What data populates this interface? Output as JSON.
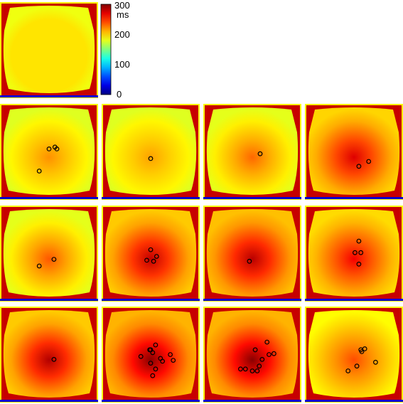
{
  "colorbar": {
    "labels": [
      "300",
      "200",
      "100",
      "0"
    ],
    "unit": "ms",
    "min": 0,
    "max": 300,
    "colormap": "jet"
  },
  "panels": [
    {
      "row": 0,
      "col": 0,
      "level": 195,
      "spot": 0,
      "markers": []
    },
    {
      "row": 1,
      "col": 0,
      "level": 190,
      "spot": 30,
      "markers": [
        [
          0.5,
          0.47
        ],
        [
          0.58,
          0.47
        ],
        [
          0.56,
          0.45
        ],
        [
          0.4,
          0.7
        ]
      ]
    },
    {
      "row": 1,
      "col": 1,
      "level": 190,
      "spot": 25,
      "markers": [
        [
          0.5,
          0.57
        ]
      ]
    },
    {
      "row": 1,
      "col": 2,
      "level": 192,
      "spot": 40,
      "markers": [
        [
          0.58,
          0.52
        ]
      ]
    },
    {
      "row": 1,
      "col": 3,
      "level": 212,
      "spot": 60,
      "markers": [
        [
          0.55,
          0.65
        ],
        [
          0.65,
          0.6
        ]
      ]
    },
    {
      "row": 2,
      "col": 0,
      "level": 192,
      "spot": 45,
      "markers": [
        [
          0.4,
          0.63
        ],
        [
          0.55,
          0.56
        ]
      ]
    },
    {
      "row": 2,
      "col": 1,
      "level": 215,
      "spot": 65,
      "markers": [
        [
          0.5,
          0.46
        ],
        [
          0.56,
          0.53
        ],
        [
          0.46,
          0.57
        ],
        [
          0.53,
          0.58
        ]
      ]
    },
    {
      "row": 2,
      "col": 2,
      "level": 218,
      "spot": 65,
      "markers": [
        [
          0.47,
          0.58
        ]
      ]
    },
    {
      "row": 2,
      "col": 3,
      "level": 210,
      "spot": 55,
      "markers": [
        [
          0.55,
          0.37
        ],
        [
          0.51,
          0.49
        ],
        [
          0.57,
          0.49
        ],
        [
          0.55,
          0.61
        ]
      ]
    },
    {
      "row": 3,
      "col": 0,
      "level": 215,
      "spot": 70,
      "markers": [
        [
          0.55,
          0.55
        ]
      ]
    },
    {
      "row": 3,
      "col": 1,
      "level": 222,
      "spot": 75,
      "markers": [
        [
          0.55,
          0.4
        ],
        [
          0.5,
          0.45
        ],
        [
          0.49,
          0.45
        ],
        [
          0.52,
          0.48
        ],
        [
          0.4,
          0.52
        ],
        [
          0.6,
          0.54
        ],
        [
          0.7,
          0.5
        ],
        [
          0.73,
          0.56
        ],
        [
          0.62,
          0.57
        ],
        [
          0.5,
          0.59
        ],
        [
          0.55,
          0.65
        ],
        [
          0.52,
          0.72
        ]
      ]
    },
    {
      "row": 3,
      "col": 2,
      "level": 222,
      "spot": 75,
      "markers": [
        [
          0.53,
          0.45
        ],
        [
          0.65,
          0.37
        ],
        [
          0.67,
          0.5
        ],
        [
          0.6,
          0.55
        ],
        [
          0.72,
          0.49
        ],
        [
          0.57,
          0.62
        ],
        [
          0.38,
          0.65
        ],
        [
          0.43,
          0.65
        ],
        [
          0.5,
          0.67
        ],
        [
          0.55,
          0.67
        ]
      ]
    },
    {
      "row": 3,
      "col": 3,
      "level": 200,
      "spot": 40,
      "markers": [
        [
          0.57,
          0.45
        ],
        [
          0.61,
          0.44
        ],
        [
          0.53,
          0.62
        ],
        [
          0.58,
          0.47
        ],
        [
          0.44,
          0.67
        ],
        [
          0.72,
          0.58
        ]
      ]
    }
  ]
}
